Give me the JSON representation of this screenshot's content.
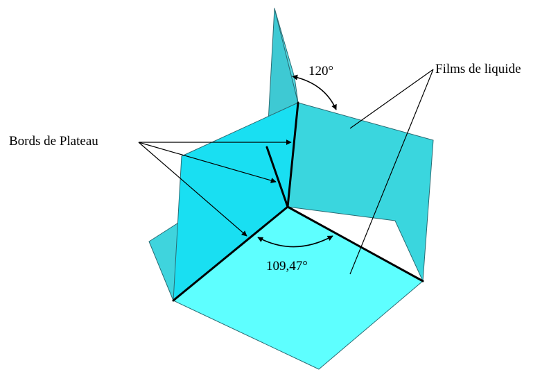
{
  "labels": {
    "plateau_borders": "Bords de Plateau",
    "liquid_films": "Films de liquide",
    "angle_120": "120°",
    "angle_10947": "109,47°"
  },
  "colors": {
    "film_back": "#3fd4dd",
    "film_mid": "#19dff2",
    "film_front": "#5effff",
    "film_right": "#3ad6de",
    "plateau_edge": "#000000",
    "text": "#000000"
  }
}
